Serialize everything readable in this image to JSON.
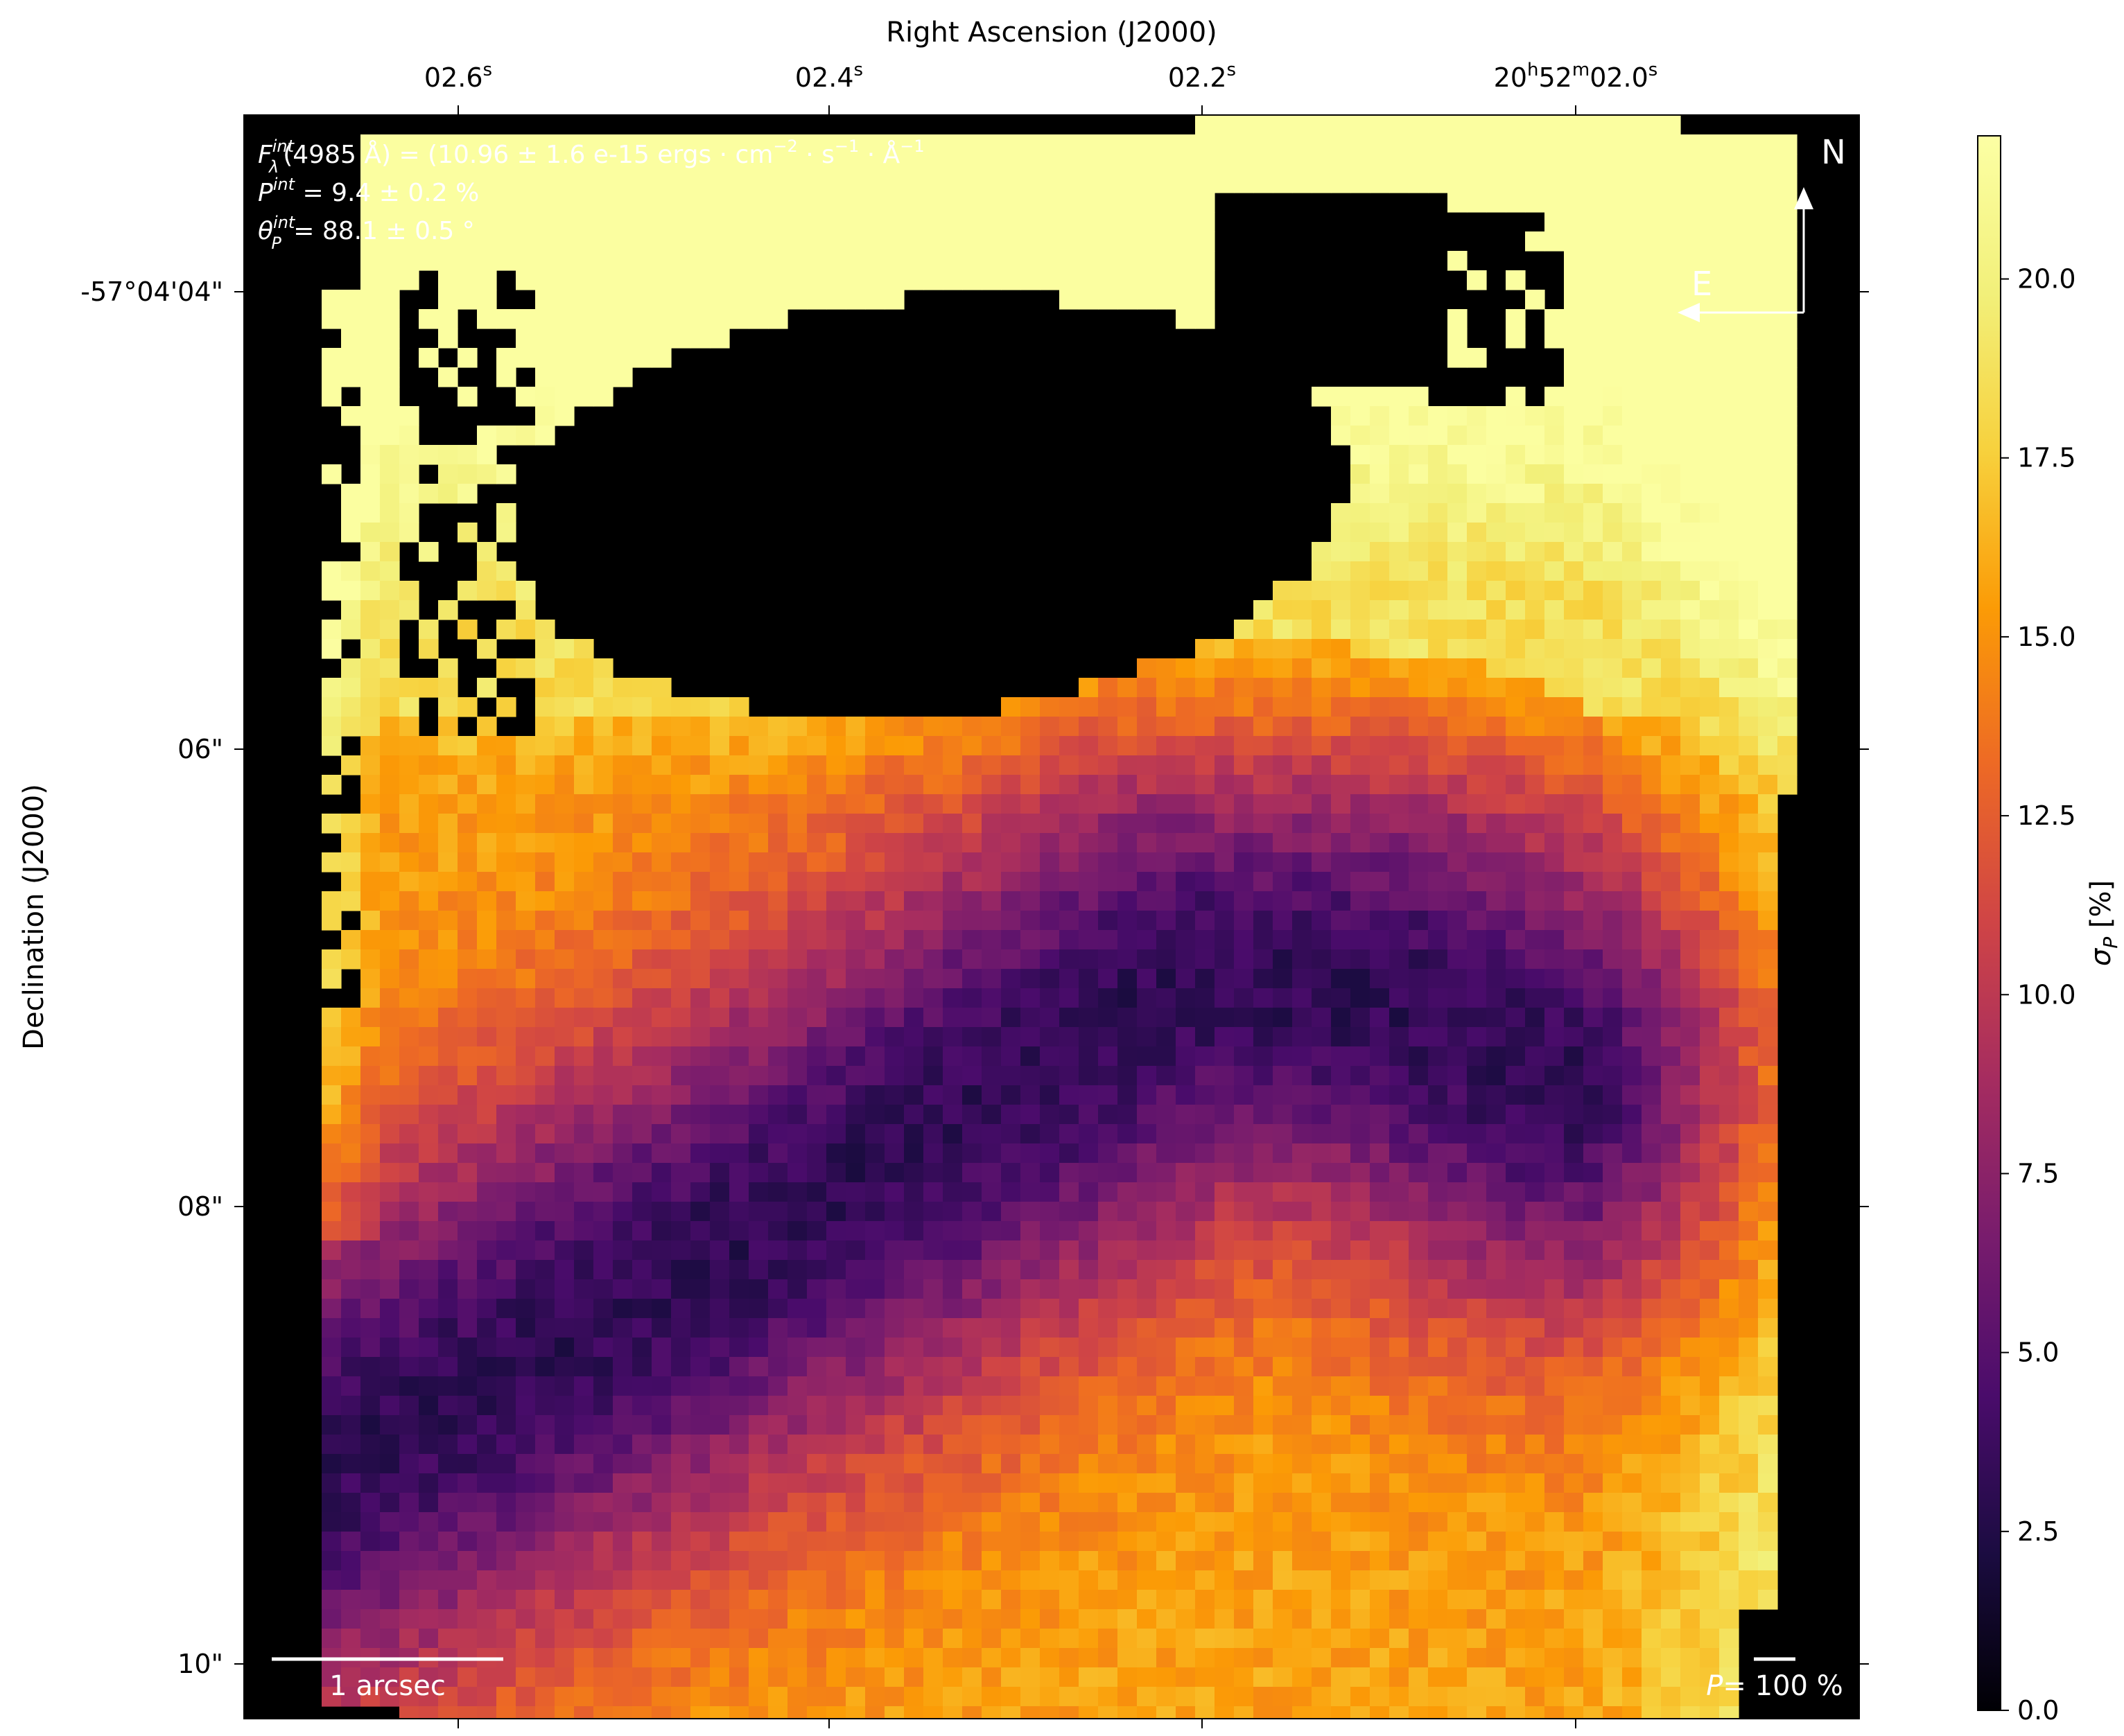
{
  "chart_data": {
    "type": "heatmap",
    "xlabel": "Right Ascension (J2000)",
    "ylabel": "Declination (J2000)",
    "x_ticks": [
      {
        "main": "02.6",
        "sup": "s"
      },
      {
        "main": "02.4",
        "sup": "s"
      },
      {
        "main": "02.2",
        "sup": "s"
      },
      {
        "main": "20",
        "sup": "h",
        "main2": "52",
        "sup2": "m",
        "main3": "02.0",
        "sup3": "s"
      }
    ],
    "y_ticks": [
      "-57°04'04\"",
      "06\"",
      "08\"",
      "10\""
    ],
    "colorbar": {
      "label": "σ",
      "label_sub": "P",
      "label_unit": " [%]",
      "range": [
        0.0,
        22.0
      ],
      "ticks": [
        "0.0",
        "2.5",
        "5.0",
        "7.5",
        "10.0",
        "12.5",
        "15.0",
        "17.5",
        "20.0"
      ],
      "colormap": "inferno"
    },
    "annotations": {
      "line1": {
        "pre": "F",
        "sup": "int",
        "sub": "λ",
        "rest": "(4985 Å) = (10.96 ± 1.6 e-15 ergs · cm",
        "sup2": "−2",
        "rest2": " · s",
        "sup3": "−1",
        "rest3": " · Å",
        "sup4": "−1"
      },
      "line2": {
        "pre": "P",
        "sup": "int",
        "rest": " = 9.4 ± 0.2 %"
      },
      "line3": {
        "pre": "θ",
        "sup": "int",
        "sub": "P",
        "rest": " = 88.1 ± 0.5 °"
      },
      "compass_n": "N",
      "compass_e": "E",
      "scale_label": "1 arcsec",
      "pol_pre": "P",
      "pol_rest": "= 100 %"
    },
    "masked_value": "black",
    "description_of_field": "sigma_P map with low values (~3%) along a diagonal dark lane, mid values (~10-15%) elsewhere, high values (~18-21%) near the masked central-north region"
  }
}
